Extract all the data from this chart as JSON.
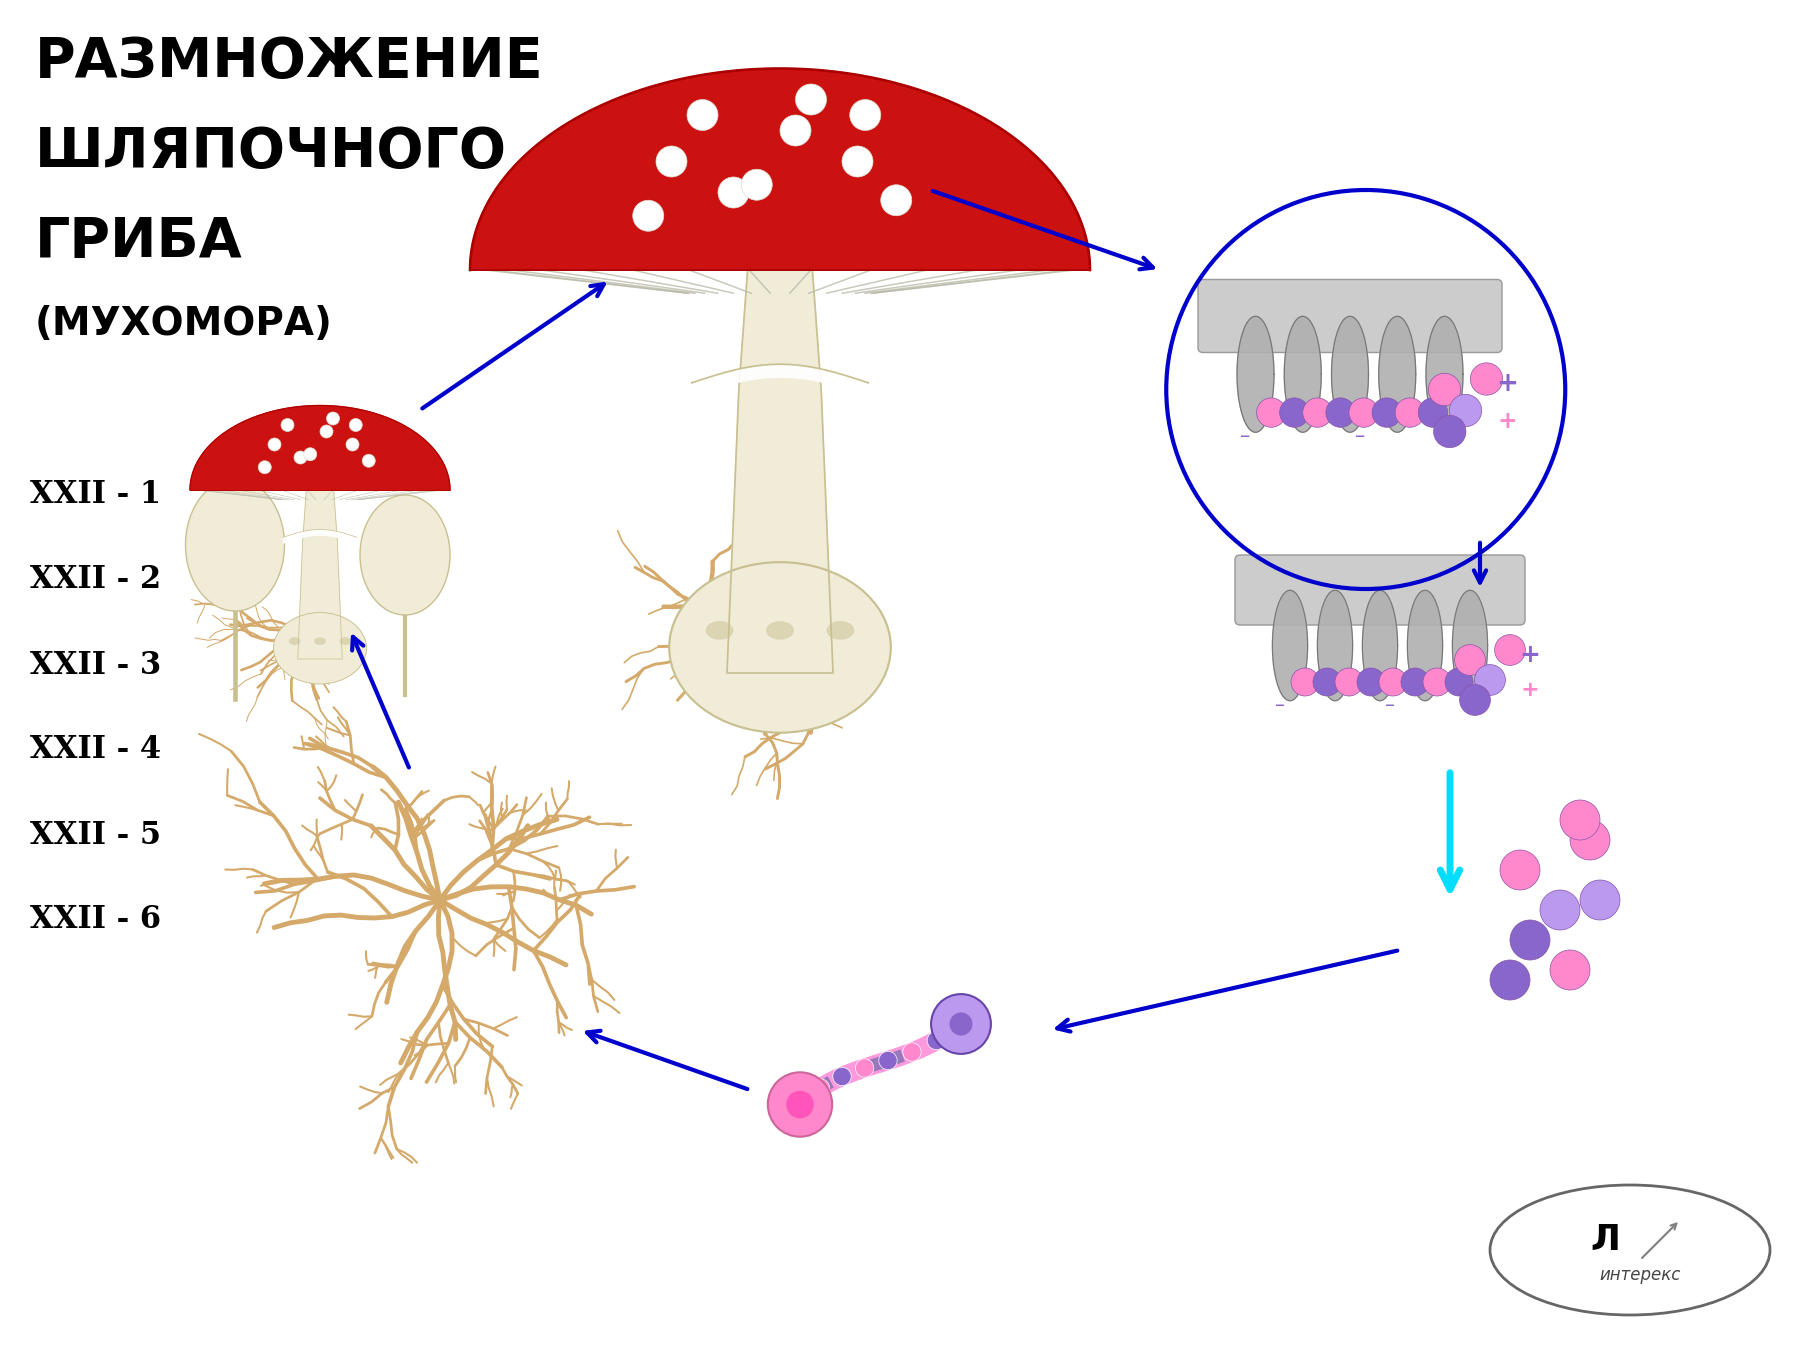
{
  "title_line1": "РАЗМНОЖЕНИЕ",
  "title_line2": "ШЛЯПОЧНОГО",
  "title_line3": "ГРИБА",
  "title_line4": "(МУХОМОРА)",
  "labels": [
    "XXII - 1",
    "XXII - 2",
    "XXII - 3",
    "XXII - 4",
    "XXII - 5",
    "XXII - 6"
  ],
  "bg_color": "#ffffff",
  "arrow_color": "#0000cc",
  "cyan_arrow_color": "#00ddff",
  "blue_circle_color": "#0000cc",
  "cap_red": "#cc1111",
  "cap_dark": "#aa0000",
  "stem_cream": "#f0ecd8",
  "stem_outline": "#c8c090",
  "mycelium_color": "#d4a96a",
  "mycelium_outline": "#b88844",
  "spore_pink": "#ff88cc",
  "spore_purple": "#8866cc",
  "spore_lavender": "#bb99ee",
  "gill_gray": "#aaaaaa",
  "gill_dark": "#888888",
  "gill_bg": "#cccccc",
  "spot_white": "#ffffff",
  "spot_outline": "#dddddd",
  "hypha_pink": "#ff99dd",
  "hypha_purple": "#9977bb",
  "logo_outline": "#666666"
}
